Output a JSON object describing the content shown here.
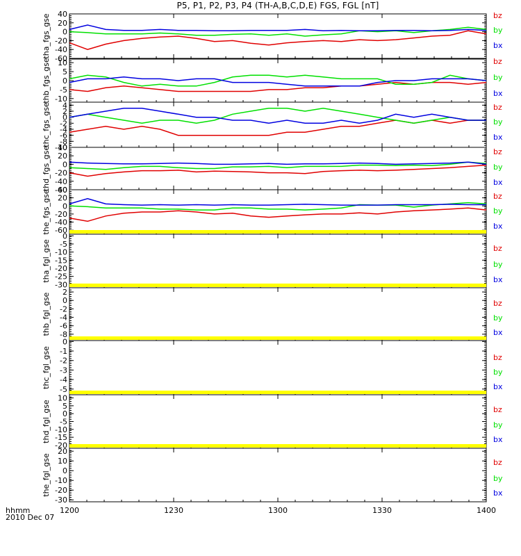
{
  "title": "P5, P1, P2, P3, P4 (TH-A,B,C,D,E) FGS, FGL [nT]",
  "footer": {
    "unit": "hhmm",
    "date": "2010 Dec 07"
  },
  "legend_labels": [
    "bz",
    "by",
    "bx"
  ],
  "colors": {
    "bz": "#e00000",
    "by": "#00e000",
    "bx": "#0000e0",
    "flag": "#ffff00"
  },
  "x_axis": {
    "ticks": [
      "1200",
      "1230",
      "1300",
      "1330",
      "1400"
    ]
  },
  "chart_data": [
    {
      "type": "line",
      "ylabel": "tha_fgs_gse",
      "ylim": [
        -60,
        40
      ],
      "yticks": [
        "40",
        "20",
        "0",
        "-20",
        "-40",
        "-60"
      ],
      "series": [
        {
          "name": "bz",
          "values": [
            -25,
            -40,
            -28,
            -20,
            -15,
            -12,
            -10,
            -15,
            -22,
            -20,
            -26,
            -30,
            -25,
            -22,
            -20,
            -22,
            -18,
            -20,
            -18,
            -14,
            -10,
            -8,
            2,
            -5
          ]
        },
        {
          "name": "by",
          "values": [
            0,
            -2,
            -5,
            -5,
            -5,
            -3,
            -5,
            -8,
            -8,
            -6,
            -5,
            -8,
            -5,
            -10,
            -7,
            -5,
            2,
            0,
            2,
            -2,
            2,
            5,
            10,
            5
          ]
        },
        {
          "name": "bx",
          "values": [
            5,
            15,
            5,
            3,
            3,
            5,
            3,
            3,
            2,
            2,
            3,
            3,
            3,
            5,
            2,
            3,
            2,
            2,
            3,
            3,
            2,
            3,
            5,
            3
          ]
        }
      ]
    },
    {
      "type": "line",
      "ylabel": "thb_fgs_gse",
      "ylim": [
        -12,
        12
      ],
      "yticks": [
        "10",
        "5",
        "0",
        "-5",
        "-10"
      ],
      "series": [
        {
          "name": "bz",
          "values": [
            -5,
            -6,
            -4,
            -3,
            -4,
            -5,
            -6,
            -6,
            -6,
            -6,
            -6,
            -5,
            -5,
            -4,
            -4,
            -3,
            -3,
            -2,
            -1,
            -2,
            -1,
            -1,
            -2,
            -1
          ]
        },
        {
          "name": "by",
          "values": [
            1,
            3,
            2,
            -1,
            -3,
            -2,
            -3,
            -3,
            -1,
            2,
            3,
            3,
            2,
            3,
            2,
            1,
            1,
            1,
            -2,
            -2,
            -1,
            3,
            1,
            0
          ]
        },
        {
          "name": "bx",
          "values": [
            -1,
            1,
            1,
            2,
            1,
            1,
            0,
            1,
            1,
            -1,
            -1,
            -1,
            -2,
            -3,
            -3,
            -3,
            -3,
            -1,
            0,
            0,
            1,
            1,
            1,
            0
          ]
        }
      ]
    },
    {
      "type": "line",
      "ylabel": "thc_fgs_gse",
      "ylim": [
        -10,
        5
      ],
      "yticks": [
        "4",
        "2",
        "0",
        "-2",
        "-4",
        "-6",
        "-8",
        "-10"
      ],
      "series": [
        {
          "name": "bz",
          "values": [
            -5,
            -4,
            -3,
            -4,
            -3,
            -4,
            -6,
            -6,
            -6,
            -6,
            -6,
            -6,
            -5,
            -5,
            -4,
            -3,
            -3,
            -2,
            -1,
            -2,
            -1,
            -2,
            -1,
            -1
          ]
        },
        {
          "name": "by",
          "values": [
            0,
            1,
            0,
            -1,
            -2,
            -1,
            -1,
            -2,
            -1,
            1,
            2,
            3,
            3,
            2,
            3,
            2,
            1,
            0,
            -1,
            -2,
            -1,
            0,
            -1,
            -1
          ]
        },
        {
          "name": "bx",
          "values": [
            0,
            1,
            2,
            3,
            3,
            2,
            1,
            0,
            0,
            -1,
            -1,
            -2,
            -1,
            -2,
            -2,
            -1,
            -2,
            -1,
            1,
            0,
            1,
            0,
            -1,
            -1
          ]
        }
      ]
    },
    {
      "type": "line",
      "ylabel": "thd_fgs_gse",
      "ylim": [
        -60,
        40
      ],
      "yticks": [
        "40",
        "20",
        "0",
        "-20",
        "-40",
        "-60"
      ],
      "series": [
        {
          "name": "bz",
          "values": [
            -20,
            -28,
            -22,
            -18,
            -15,
            -15,
            -14,
            -18,
            -16,
            -17,
            -18,
            -20,
            -20,
            -22,
            -17,
            -15,
            -14,
            -15,
            -14,
            -12,
            -10,
            -8,
            -5,
            -2
          ]
        },
        {
          "name": "by",
          "values": [
            -8,
            -10,
            -12,
            -8,
            -5,
            -5,
            -8,
            -10,
            -10,
            -6,
            -6,
            -5,
            -8,
            -5,
            -5,
            -5,
            -2,
            -2,
            -3,
            -2,
            -3,
            0,
            5,
            2
          ]
        },
        {
          "name": "bx",
          "values": [
            5,
            3,
            2,
            1,
            1,
            2,
            3,
            2,
            0,
            0,
            1,
            2,
            0,
            1,
            1,
            2,
            3,
            2,
            0,
            1,
            2,
            3,
            5,
            0
          ]
        }
      ]
    },
    {
      "type": "line",
      "ylabel": "the_fgs_gse",
      "ylim": [
        -70,
        40
      ],
      "yticks": [
        "40",
        "20",
        "0",
        "-20",
        "-40",
        "-60"
      ],
      "series": [
        {
          "name": "bz",
          "values": [
            -30,
            -38,
            -25,
            -18,
            -15,
            -15,
            -12,
            -15,
            -20,
            -18,
            -25,
            -28,
            -25,
            -22,
            -20,
            -20,
            -17,
            -20,
            -15,
            -12,
            -10,
            -8,
            -5,
            -10
          ]
        },
        {
          "name": "by",
          "values": [
            0,
            -2,
            -5,
            -5,
            -5,
            -8,
            -8,
            -10,
            -10,
            -5,
            -5,
            -8,
            -8,
            -10,
            -8,
            -5,
            3,
            2,
            2,
            -3,
            2,
            5,
            8,
            5
          ]
        },
        {
          "name": "bx",
          "values": [
            5,
            18,
            5,
            3,
            2,
            3,
            2,
            3,
            2,
            3,
            2,
            2,
            3,
            4,
            3,
            2,
            2,
            2,
            3,
            3,
            3,
            4,
            3,
            3
          ]
        }
      ]
    },
    {
      "type": "line",
      "ylabel": "tha_fgl_gse",
      "ylim": [
        -32,
        1
      ],
      "yticks": [
        "0",
        "-5",
        "-10",
        "-15",
        "-20",
        "-25",
        "-30"
      ],
      "series": []
    },
    {
      "type": "line",
      "ylabel": "thb_fgl_gse",
      "ylim": [
        -9.5,
        3
      ],
      "yticks": [
        "2",
        "0",
        "-2",
        "-4",
        "-6",
        "-8"
      ],
      "series": []
    },
    {
      "type": "line",
      "ylabel": "thc_fgl_gse",
      "ylim": [
        -5.6,
        0.1
      ],
      "yticks": [
        "0",
        "-1",
        "-2",
        "-3",
        "-4",
        "-5"
      ],
      "series": []
    },
    {
      "type": "line",
      "ylabel": "thd_fgl_gse",
      "ylim": [
        -22,
        12
      ],
      "yticks": [
        "10",
        "5",
        "0",
        "-5",
        "-10",
        "-15",
        "-20"
      ],
      "series": []
    },
    {
      "type": "line",
      "ylabel": "the_fgl_gse",
      "ylim": [
        -32,
        23
      ],
      "yticks": [
        "20",
        "10",
        "0",
        "-10",
        "-20",
        "-30"
      ],
      "series": []
    }
  ]
}
